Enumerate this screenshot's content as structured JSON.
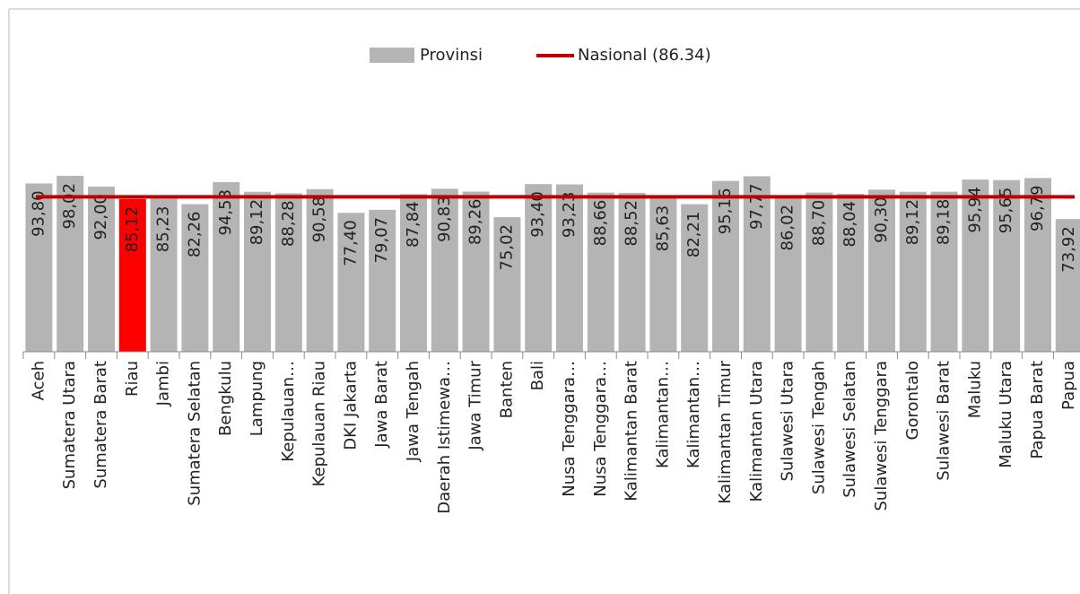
{
  "chart_data": {
    "type": "bar",
    "categories": [
      "Aceh",
      "Sumatera Utara",
      "Sumatera Barat",
      "Riau",
      "Jambi",
      "Sumatera Selatan",
      "Bengkulu",
      "Lampung",
      "Kepulauan…",
      "Kepulauan Riau",
      "DKI Jakarta",
      "Jawa Barat",
      "Jawa Tengah",
      "Daerah Istimewa…",
      "Jawa Timur",
      "Banten",
      "Bali",
      "Nusa Tenggara…",
      "Nusa Tenggara…",
      "Kalimantan Barat",
      "Kalimantan…",
      "Kalimantan…",
      "Kalimantan Timur",
      "Kalimantan Utara",
      "Sulawesi Utara",
      "Sulawesi Tengah",
      "Sulawesi Selatan",
      "Sulawesi Tenggara",
      "Gorontalo",
      "Sulawesi Barat",
      "Maluku",
      "Maluku Utara",
      "Papua Barat",
      "Papua"
    ],
    "series": [
      {
        "name": "Provinsi",
        "color": "#b4b4b4",
        "values": [
          93.8,
          98.02,
          92.0,
          85.12,
          85.23,
          82.26,
          94.53,
          89.12,
          88.28,
          90.58,
          77.4,
          79.07,
          87.84,
          90.83,
          89.26,
          75.02,
          93.4,
          93.23,
          88.66,
          88.52,
          85.63,
          82.21,
          95.16,
          97.77,
          86.02,
          88.7,
          88.04,
          90.3,
          89.12,
          89.18,
          95.94,
          95.65,
          96.79,
          73.92
        ],
        "value_labels": [
          "93,80",
          "98,02",
          "92,00",
          "85,12",
          "85,23",
          "82,26",
          "94,53",
          "89,12",
          "88,28",
          "90,58",
          "77,40",
          "79,07",
          "87,84",
          "90,83",
          "89,26",
          "75,02",
          "93,40",
          "93,23",
          "88,66",
          "88,52",
          "85,63",
          "82,21",
          "95,16",
          "97,77",
          "86,02",
          "88,70",
          "88,04",
          "90,30",
          "89,12",
          "89,18",
          "95,94",
          "95,65",
          "96,79",
          "73,92"
        ],
        "point_colors": [
          "#b4b4b4",
          "#b4b4b4",
          "#b4b4b4",
          "#ff0000",
          "#b4b4b4",
          "#b4b4b4",
          "#b4b4b4",
          "#b4b4b4",
          "#b4b4b4",
          "#b4b4b4",
          "#b4b4b4",
          "#b4b4b4",
          "#b4b4b4",
          "#b4b4b4",
          "#b4b4b4",
          "#b4b4b4",
          "#b4b4b4",
          "#b4b4b4",
          "#b4b4b4",
          "#b4b4b4",
          "#b4b4b4",
          "#b4b4b4",
          "#b4b4b4",
          "#b4b4b4",
          "#b4b4b4",
          "#b4b4b4",
          "#b4b4b4",
          "#b4b4b4",
          "#b4b4b4",
          "#b4b4b4",
          "#b4b4b4",
          "#b4b4b4",
          "#b4b4b4",
          "#b4b4b4"
        ]
      }
    ],
    "reference_line": {
      "name": "Nasional (86.34)",
      "value": 86.34,
      "color": "#c00000"
    },
    "ylim": [
      0,
      120
    ]
  }
}
